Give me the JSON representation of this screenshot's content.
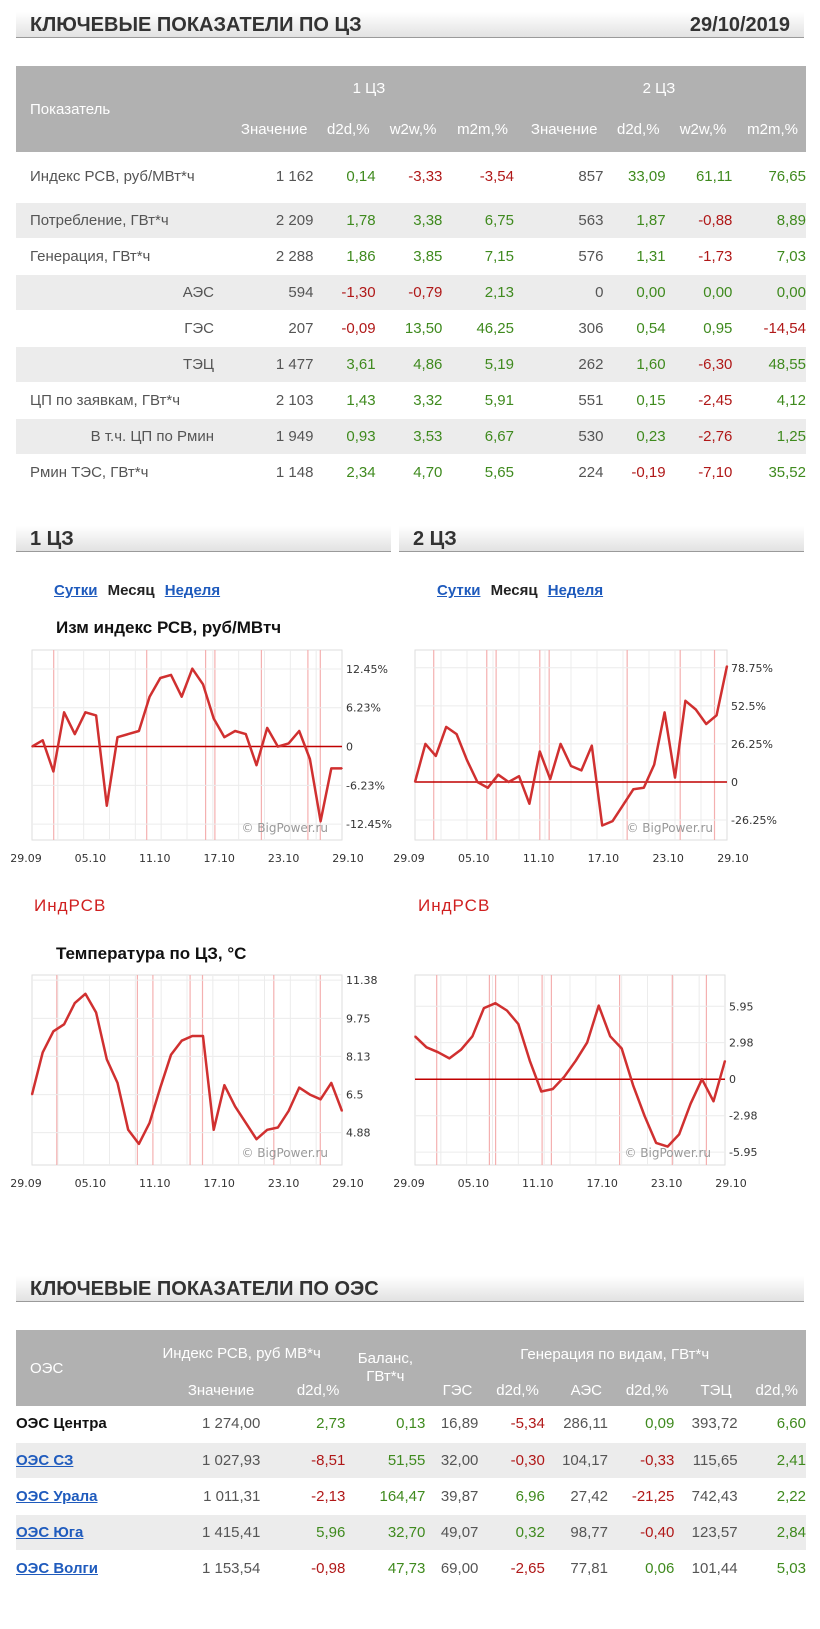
{
  "header": {
    "title": "КЛЮЧЕВЫЕ ПОКАЗАТЕЛИ ПО ЦЗ",
    "date": "29/10/2019"
  },
  "cz_table": {
    "col_label": "Показатель",
    "group1": "1 ЦЗ",
    "group2": "2 ЦЗ",
    "subcols": [
      "Значение",
      "d2d,%",
      "w2w,%",
      "m2m,%",
      "Значение",
      "d2d,%",
      "w2w,%",
      "m2m,%"
    ],
    "rows": [
      {
        "label": "Индекс РСВ, руб/МВт*ч",
        "indent": false,
        "vals": [
          "1 162",
          "0,14",
          "-3,33",
          "-3,54",
          "857",
          "33,09",
          "61,11",
          "76,65"
        ]
      },
      {
        "label": "Потребление, ГВт*ч",
        "indent": false,
        "vals": [
          "2 209",
          "1,78",
          "3,38",
          "6,75",
          "563",
          "1,87",
          "-0,88",
          "8,89"
        ]
      },
      {
        "label": "Генерация, ГВт*ч",
        "indent": false,
        "vals": [
          "2 288",
          "1,86",
          "3,85",
          "7,15",
          "576",
          "1,31",
          "-1,73",
          "7,03"
        ]
      },
      {
        "label": "АЭС",
        "indent": true,
        "vals": [
          "594",
          "-1,30",
          "-0,79",
          "2,13",
          "0",
          "0,00",
          "0,00",
          "0,00"
        ]
      },
      {
        "label": "ГЭС",
        "indent": true,
        "vals": [
          "207",
          "-0,09",
          "13,50",
          "46,25",
          "306",
          "0,54",
          "0,95",
          "-14,54"
        ]
      },
      {
        "label": "ТЭЦ",
        "indent": true,
        "vals": [
          "1 477",
          "3,61",
          "4,86",
          "5,19",
          "262",
          "1,60",
          "-6,30",
          "48,55"
        ]
      },
      {
        "label": "ЦП по заявкам, ГВт*ч",
        "indent": false,
        "vals": [
          "2 103",
          "1,43",
          "3,32",
          "5,91",
          "551",
          "0,15",
          "-2,45",
          "4,12"
        ]
      },
      {
        "label": "В т.ч. ЦП по Рмин",
        "indent": true,
        "vals": [
          "1 949",
          "0,93",
          "3,53",
          "6,67",
          "530",
          "0,23",
          "-2,76",
          "1,25"
        ]
      },
      {
        "label": "Рмин ТЭС, ГВт*ч",
        "indent": false,
        "vals": [
          "1 148",
          "2,34",
          "4,70",
          "5,65",
          "224",
          "-0,19",
          "-7,10",
          "35,52"
        ]
      }
    ]
  },
  "panels": {
    "left": {
      "title": "1 ЦЗ",
      "tab1": "Сутки",
      "tab2": "Месяц",
      "tab3": "Неделя"
    },
    "right": {
      "title": "2 ЦЗ",
      "tab1": "Сутки",
      "tab2": "Месяц",
      "tab3": "Неделя"
    }
  },
  "chart_titles": {
    "index": "Изм индекс РСВ, руб/МВтч",
    "temp": "Температура по ЦЗ, °C"
  },
  "legend_label": "ИндРСВ",
  "watermark": "© BigPower.ru",
  "colors": {
    "line": "#d03030",
    "vline": "#f4b0b0",
    "grid": "#dedede",
    "zero": "#c00000",
    "pos": "#3f8a1e",
    "neg": "#b01818",
    "link": "#1f5bbd"
  },
  "chart_data": [
    {
      "type": "line",
      "title": "Изм индекс РСВ, руб/МВтч",
      "zone": "1 ЦЗ",
      "series": [
        {
          "name": "ИндРСВ",
          "values": [
            0,
            1,
            -4,
            5.5,
            2,
            5.5,
            5,
            -9.5,
            1.5,
            2,
            2.5,
            8,
            11,
            11.5,
            8,
            12.5,
            10,
            4.5,
            1.5,
            2.5,
            2,
            -3,
            3,
            0,
            0.5,
            2.5,
            -2,
            -12,
            -3.5,
            -3.5
          ]
        }
      ],
      "xticks": [
        "29.09",
        "05.10",
        "11.10",
        "17.10",
        "23.10",
        "29.10"
      ],
      "yticks": [
        "12.45%",
        "6.23%",
        "0",
        "-6.23%",
        "-12.45%"
      ],
      "ylim": [
        -15,
        15.5
      ]
    },
    {
      "type": "line",
      "title": "Изм индекс РСВ, руб/МВтч",
      "zone": "2 ЦЗ",
      "series": [
        {
          "name": "ИндРСВ",
          "values": [
            0,
            26.25,
            18,
            38,
            33,
            15,
            0,
            -4,
            5,
            0,
            4,
            -15,
            21,
            2,
            26.25,
            11,
            8,
            25,
            -30,
            -27,
            -16,
            -5,
            -4,
            12,
            48,
            3,
            56,
            50,
            40,
            46,
            80
          ]
        }
      ],
      "xticks": [
        "29.09",
        "05.10",
        "11.10",
        "17.10",
        "23.10",
        "29.10"
      ],
      "yticks": [
        "78.75%",
        "52.5%",
        "26.25%",
        "0",
        "-26.25%"
      ],
      "ylim": [
        -40,
        91
      ]
    },
    {
      "type": "line",
      "title": "Температура по ЦЗ, °C",
      "zone": "1 ЦЗ",
      "series": [
        {
          "name": "",
          "values": [
            6.5,
            8.3,
            9.2,
            9.5,
            10.4,
            10.8,
            10.0,
            8.0,
            7.0,
            5.0,
            4.4,
            5.3,
            6.8,
            8.2,
            8.8,
            9.0,
            9.0,
            5.0,
            6.9,
            6.0,
            5.3,
            4.6,
            5.0,
            5.1,
            5.8,
            6.8,
            6.5,
            6.3,
            7.0,
            5.8
          ]
        }
      ],
      "xticks": [
        "29.09",
        "05.10",
        "11.10",
        "17.10",
        "23.10",
        "29.10"
      ],
      "yticks": [
        "11.38",
        "9.75",
        "8.13",
        "6.5",
        "4.88"
      ],
      "ylim": [
        3.5,
        11.6
      ]
    },
    {
      "type": "line",
      "title": "Температура по ЦЗ, °C",
      "zone": "2 ЦЗ",
      "series": [
        {
          "name": "",
          "values": [
            3.5,
            2.6,
            2.2,
            1.7,
            2.4,
            3.5,
            5.8,
            6.2,
            5.6,
            4.5,
            1.5,
            -1.0,
            -0.8,
            0.2,
            1.5,
            3.0,
            6.0,
            3.5,
            2.5,
            -0.5,
            -3.0,
            -5.2,
            -5.5,
            -4.5,
            -2.0,
            0.0,
            -1.8,
            1.5
          ]
        }
      ],
      "xticks": [
        "29.09",
        "05.10",
        "11.10",
        "17.10",
        "23.10",
        "29.10"
      ],
      "yticks": [
        "5.95",
        "2.98",
        "0",
        "-2.98",
        "-5.95"
      ],
      "ylim": [
        -7,
        8.5
      ]
    }
  ],
  "oes_header": {
    "title": "КЛЮЧЕВЫЕ ПОКАЗАТЕЛИ ПО ОЭС"
  },
  "oes_table": {
    "col_oes": "ОЭС",
    "col_index": "Индекс РСВ, руб МВ*ч",
    "col_balance": "Баланс, ГВт*ч",
    "col_gen": "Генерация по видам, ГВт*ч",
    "subcols": [
      "Значение",
      "d2d,%",
      "ГЭС",
      "d2d,%",
      "АЭС",
      "d2d,%",
      "ТЭЦ",
      "d2d,%"
    ],
    "rows": [
      {
        "name": "ОЭС Центра",
        "link": false,
        "vals": [
          "1 274,00",
          "2,73",
          "0,13",
          "16,89",
          "-5,34",
          "286,11",
          "0,09",
          "393,72",
          "6,60"
        ]
      },
      {
        "name": "ОЭС СЗ",
        "link": true,
        "vals": [
          "1 027,93",
          "-8,51",
          "51,55",
          "32,00",
          "-0,30",
          "104,17",
          "-0,33",
          "115,65",
          "2,41"
        ]
      },
      {
        "name": "ОЭС Урала",
        "link": true,
        "vals": [
          "1 011,31",
          "-2,13",
          "164,47",
          "39,87",
          "6,96",
          "27,42",
          "-21,25",
          "742,43",
          "2,22"
        ]
      },
      {
        "name": "ОЭС Юга",
        "link": true,
        "vals": [
          "1 415,41",
          "5,96",
          "32,70",
          "49,07",
          "0,32",
          "98,77",
          "-0,40",
          "123,57",
          "2,84"
        ]
      },
      {
        "name": "ОЭС Волги",
        "link": true,
        "vals": [
          "1 153,54",
          "-0,98",
          "47,73",
          "69,00",
          "-2,65",
          "77,81",
          "0,06",
          "101,44",
          "5,03"
        ]
      }
    ]
  }
}
